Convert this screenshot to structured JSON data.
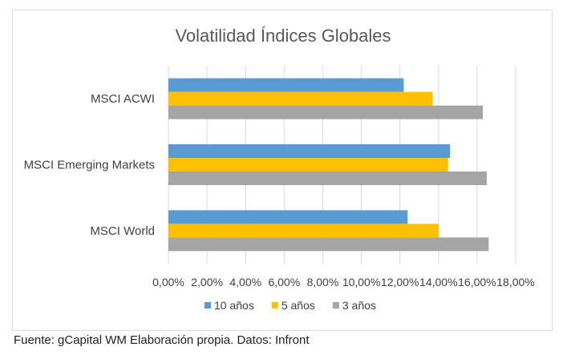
{
  "source_note": "Fuente: gCapital WM Elaboración propia. Datos: Infront",
  "chart_data": {
    "type": "bar",
    "orientation": "horizontal",
    "title": "Volatilidad Índices Globales",
    "categories": [
      "MSCI ACWI",
      "MSCI Emerging Markets",
      "MSCI World"
    ],
    "series": [
      {
        "name": "10 años",
        "color": "#5b9bd5",
        "values": [
          12.2,
          14.6,
          12.4
        ]
      },
      {
        "name": "5 años",
        "color": "#ffc000",
        "values": [
          13.7,
          14.5,
          14.0
        ]
      },
      {
        "name": "3 años",
        "color": "#a5a5a5",
        "values": [
          16.3,
          16.5,
          16.6
        ]
      }
    ],
    "x_ticks": [
      "0,00%",
      "2,00%",
      "4,00%",
      "6,00%",
      "8,00%",
      "10,00%",
      "12,00%",
      "14,00%",
      "16,00%",
      "18,00%"
    ],
    "xlim": [
      0,
      18
    ],
    "grid": true,
    "legend_position": "bottom"
  }
}
